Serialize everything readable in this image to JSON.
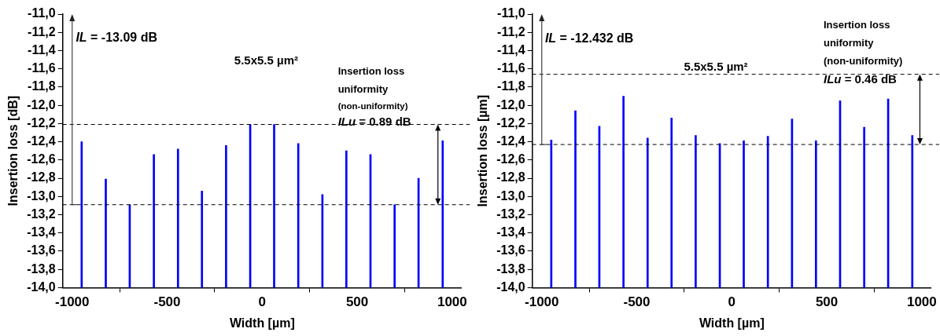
{
  "chart_data": [
    {
      "type": "bar",
      "xlabel": "Width [µm]",
      "ylabel": "Insertion loss [dB]",
      "x": [
        -950,
        -823,
        -697,
        -570,
        -443,
        -317,
        -190,
        -63,
        63,
        190,
        317,
        443,
        570,
        697,
        823,
        950
      ],
      "base": [
        -14,
        -14,
        -14,
        -14,
        -14,
        -14,
        -14,
        -14,
        -14,
        -14,
        -14,
        -14,
        -14,
        -14,
        -14,
        -14
      ],
      "values": [
        1.6,
        1.19,
        0.91,
        1.46,
        1.52,
        1.06,
        1.56,
        1.79,
        1.79,
        1.58,
        1.02,
        1.5,
        1.46,
        0.91,
        1.2,
        1.61
      ],
      "color": "#0000ff",
      "xlim": [
        -1050,
        1050
      ],
      "xticks": [
        -1000,
        -500,
        0,
        500,
        1000
      ],
      "ylim": [
        -14,
        -11
      ],
      "yticks": [
        {
          "value": -14,
          "label": "-14,0"
        },
        {
          "value": -13.8,
          "label": "-13,8"
        },
        {
          "value": -13.6,
          "label": "-13,6"
        },
        {
          "value": -13.4,
          "label": "-13,4"
        },
        {
          "value": -13.2,
          "label": "-13,2"
        },
        {
          "value": -13,
          "label": "-13,0"
        },
        {
          "value": -12.8,
          "label": "-12,8"
        },
        {
          "value": -12.6,
          "label": "-12,6"
        },
        {
          "value": -12.4,
          "label": "-12,4"
        },
        {
          "value": -12.2,
          "label": "-12,2"
        },
        {
          "value": -12,
          "label": "-12,0"
        },
        {
          "value": -11.8,
          "label": "-11,8"
        },
        {
          "value": -11.6,
          "label": "-11,6"
        },
        {
          "value": -11.4,
          "label": "-11,4"
        },
        {
          "value": -11.2,
          "label": "-11,2"
        },
        {
          "value": -11,
          "label": "-11,0"
        }
      ],
      "ref_lines": [
        {
          "axis": "y",
          "value": -12.21,
          "color": "#000000",
          "line_style": "dashed"
        },
        {
          "axis": "y",
          "value": -13.09,
          "color": "#000000",
          "line_style": "dashed"
        }
      ],
      "annotations": [
        {
          "text": "IL = -13.09 dB",
          "x": -1000,
          "y": -13.09
        },
        "5.5x5.5 µm²",
        "Insertion loss",
        "uniformity",
        "(non-uniformity)",
        {
          "text": "ILu = 0.89 dB",
          "x": 925,
          "y": -12.21
        }
      ],
      "grid": false,
      "legend": false
    },
    {
      "type": "bar",
      "xlabel": "Width [µm]",
      "ylabel": "Insertion loss [µm]",
      "x": [
        -950,
        -823,
        -697,
        -570,
        -443,
        -317,
        -190,
        -63,
        63,
        190,
        317,
        443,
        570,
        697,
        823,
        950
      ],
      "base": [
        -14,
        -14,
        -14,
        -14,
        -14,
        -14,
        -14,
        -14,
        -14,
        -14,
        -14,
        -14,
        -14,
        -14,
        -14,
        -14
      ],
      "values": [
        1.62,
        1.94,
        1.77,
        2.1,
        1.64,
        1.86,
        1.67,
        1.58,
        1.61,
        1.66,
        1.85,
        1.61,
        2.05,
        1.76,
        2.07,
        1.67
      ],
      "color": "#0000ff",
      "xlim": [
        -1050,
        1050
      ],
      "xticks": [
        -1000,
        -500,
        0,
        500,
        1000
      ],
      "ylim": [
        -14,
        -11
      ],
      "yticks": [
        {
          "value": -14,
          "label": "-14,0"
        },
        {
          "value": -13.8,
          "label": "-13,8"
        },
        {
          "value": -13.6,
          "label": "-13,6"
        },
        {
          "value": -13.4,
          "label": "-13,4"
        },
        {
          "value": -13.2,
          "label": "-13,2"
        },
        {
          "value": -13,
          "label": "-13,0"
        },
        {
          "value": -12.8,
          "label": "-12,8"
        },
        {
          "value": -12.6,
          "label": "-12,6"
        },
        {
          "value": -12.4,
          "label": "-12,4"
        },
        {
          "value": -12.2,
          "label": "-12,2"
        },
        {
          "value": -12,
          "label": "-12,0"
        },
        {
          "value": -11.8,
          "label": "-11,8"
        },
        {
          "value": -11.6,
          "label": "-11,6"
        },
        {
          "value": -11.4,
          "label": "-11,4"
        },
        {
          "value": -11.2,
          "label": "-11,2"
        },
        {
          "value": -11,
          "label": "-11,0"
        }
      ],
      "ref_lines": [
        {
          "axis": "y",
          "value": -11.66,
          "color": "#000000",
          "line_style": "dashed"
        },
        {
          "axis": "y",
          "value": -12.43,
          "color": "#000000",
          "line_style": "dashed"
        }
      ],
      "annotations": [
        {
          "text": "IL = -12.432 dB",
          "x": -1000,
          "y": -12.43
        },
        "5.5x5.5 µm²",
        "Insertion loss",
        "uniformity",
        "(non-uniformity)",
        {
          "text": "ILu = 0.46 dB",
          "x": 990,
          "y": -11.66
        }
      ],
      "grid": false,
      "legend": false
    }
  ]
}
